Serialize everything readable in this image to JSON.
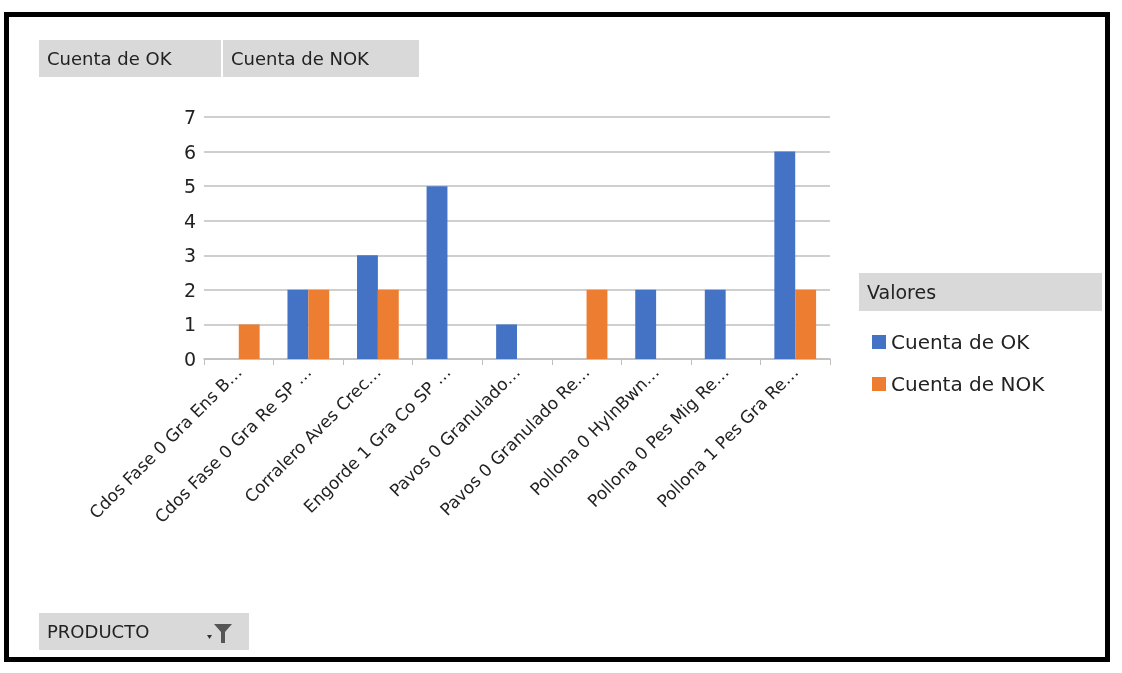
{
  "chart_data": {
    "type": "bar",
    "categories": [
      "Cdos Fase 0 Gra Ens B…",
      "Cdos Fase 0 Gra Re SP …",
      "Corralero Aves Crec…",
      "Engorde 1 Gra Co SP …",
      "Pavos 0 Granulado…",
      "Pavos 0 Granulado Re…",
      "Pollona 0 HylnBwn…",
      "Pollona 0 Pes Mig Re…",
      "Pollona 1 Pes Gra Re…"
    ],
    "series": [
      {
        "name": "Cuenta de OK",
        "color": "#4472c4",
        "values": [
          null,
          2,
          3,
          5,
          1,
          null,
          2,
          2,
          6
        ]
      },
      {
        "name": "Cuenta de NOK",
        "color": "#ed7d31",
        "values": [
          1,
          2,
          2,
          null,
          null,
          2,
          null,
          null,
          2
        ]
      }
    ],
    "ylim": [
      0,
      7
    ],
    "yticks": [
      0,
      1,
      2,
      3,
      4,
      5,
      6,
      7
    ],
    "grid": "y",
    "legend": "right",
    "legend_title": "Valores",
    "annotations": [
      "Cuenta de OK",
      "Cuenta de NOK",
      "PRODUCTO"
    ]
  }
}
